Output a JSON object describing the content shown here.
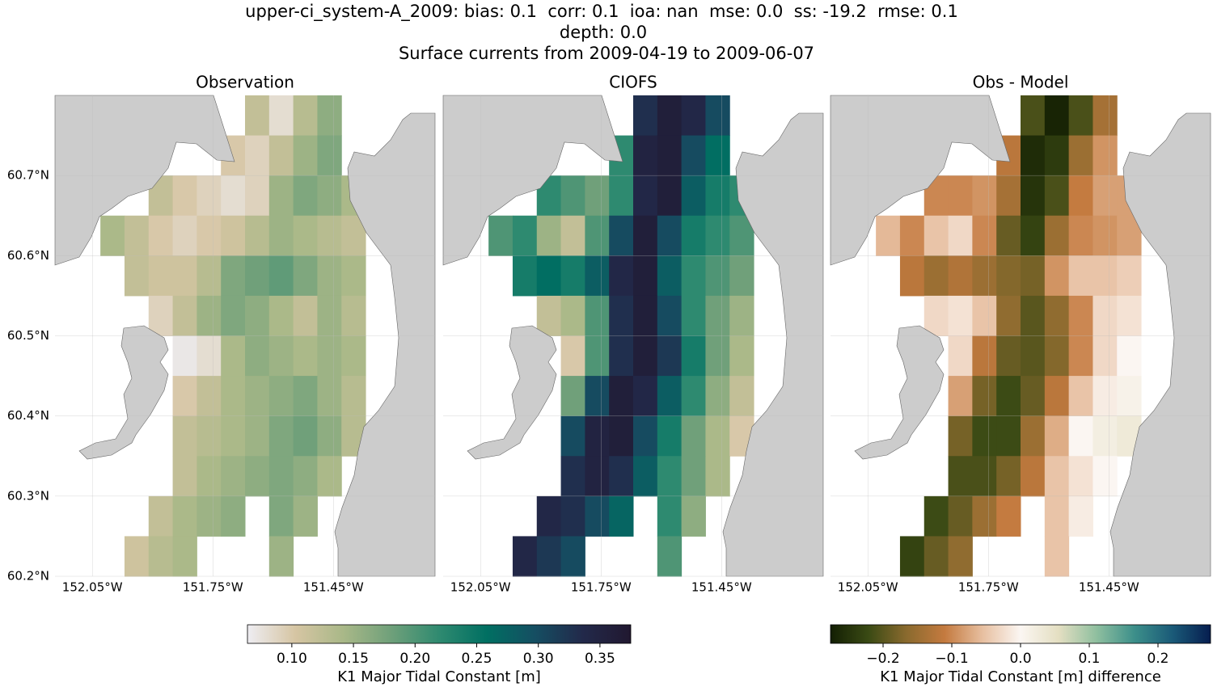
{
  "suptitle": [
    "upper-ci_system-A_2009: bias: 0.1  corr: 0.1  ioa: nan  mse: 0.0  ss: -19.2  rmse: 0.1",
    "depth: 0.0",
    "Surface currents from 2009-04-19 to 2009-06-07"
  ],
  "chart_data": [
    {
      "type": "heatmap",
      "title": "Observation",
      "x": [
        -152.0,
        -151.94,
        -151.88,
        -151.82,
        -151.76,
        -151.7,
        -151.64,
        -151.58,
        -151.52,
        -151.46,
        -151.4
      ],
      "y": [
        60.775,
        60.725,
        60.675,
        60.625,
        60.575,
        60.525,
        60.475,
        60.425,
        60.375,
        60.325,
        60.275,
        60.225
      ],
      "values": [
        [
          null,
          null,
          null,
          null,
          null,
          null,
          0.12,
          0.08,
          0.13,
          0.16,
          null
        ],
        [
          null,
          null,
          null,
          null,
          null,
          0.1,
          0.09,
          0.12,
          0.15,
          0.17,
          null
        ],
        [
          null,
          null,
          0.12,
          0.1,
          0.09,
          0.08,
          0.09,
          0.15,
          0.17,
          0.16,
          0.14
        ],
        [
          0.14,
          0.12,
          0.1,
          0.09,
          0.1,
          0.11,
          0.13,
          0.15,
          0.14,
          0.13,
          0.12
        ],
        [
          null,
          0.12,
          0.11,
          0.11,
          0.13,
          0.17,
          0.18,
          0.19,
          0.17,
          0.15,
          0.14
        ],
        [
          null,
          null,
          0.09,
          0.12,
          0.15,
          0.17,
          0.16,
          0.14,
          0.12,
          0.15,
          0.13
        ],
        [
          null,
          null,
          null,
          0.07,
          0.08,
          0.14,
          0.16,
          0.15,
          0.14,
          0.15,
          0.14
        ],
        [
          null,
          null,
          null,
          0.1,
          0.12,
          0.14,
          0.15,
          0.16,
          0.17,
          0.15,
          0.13
        ],
        [
          null,
          null,
          null,
          0.12,
          0.13,
          0.14,
          0.15,
          0.17,
          0.18,
          0.16,
          0.13
        ],
        [
          null,
          null,
          null,
          0.12,
          0.14,
          0.15,
          0.16,
          0.17,
          0.16,
          0.14,
          null
        ],
        [
          null,
          null,
          0.12,
          0.14,
          0.15,
          0.16,
          null,
          0.17,
          0.15,
          null,
          null
        ],
        [
          null,
          0.11,
          0.13,
          0.14,
          null,
          null,
          null,
          0.15,
          null,
          null,
          null
        ]
      ],
      "xlim": [
        -152.143,
        -151.197
      ],
      "ylim": [
        60.2,
        60.8
      ],
      "xticks": [
        {
          "value": -152.05,
          "label": "152.05°W"
        },
        {
          "value": -151.75,
          "label": "151.75°W"
        },
        {
          "value": -151.45,
          "label": "151.45°W"
        }
      ],
      "yticks": [
        {
          "value": 60.2,
          "label": "60.2°N"
        },
        {
          "value": 60.3,
          "label": "60.3°N"
        },
        {
          "value": 60.4,
          "label": "60.4°N"
        },
        {
          "value": 60.5,
          "label": "60.5°N"
        },
        {
          "value": 60.6,
          "label": "60.6°N"
        },
        {
          "value": 60.7,
          "label": "60.7°N"
        }
      ],
      "grid": true,
      "colorbar": {
        "label": "K1 Major Tidal Constant [m]",
        "lim": [
          0.064,
          0.375
        ],
        "ticks": [
          {
            "value": 0.1,
            "label": "0.10"
          },
          0.15,
          {
            "value": 0.2,
            "label": "0.20"
          },
          0.25,
          {
            "value": 0.3,
            "label": "0.30"
          },
          0.35
        ],
        "colors": [
          "#eeedf2",
          "#d6c5a3",
          "#a9b888",
          "#6fa07a",
          "#2f8a70",
          "#006f62",
          "#154e62",
          "#22294a",
          "#211830"
        ]
      }
    },
    {
      "type": "heatmap",
      "title": "CIOFS",
      "x": [
        -152.0,
        -151.94,
        -151.88,
        -151.82,
        -151.76,
        -151.7,
        -151.64,
        -151.58,
        -151.52,
        -151.46,
        -151.4
      ],
      "y": [
        60.775,
        60.725,
        60.675,
        60.625,
        60.575,
        60.525,
        60.475,
        60.425,
        60.375,
        60.325,
        60.275,
        60.225
      ],
      "values": [
        [
          null,
          null,
          null,
          null,
          null,
          null,
          0.33,
          0.36,
          0.34,
          0.3,
          null
        ],
        [
          null,
          null,
          null,
          null,
          null,
          0.22,
          0.35,
          0.36,
          0.3,
          0.26,
          null
        ],
        [
          null,
          null,
          0.22,
          0.2,
          0.18,
          0.22,
          0.34,
          0.36,
          0.28,
          0.24,
          0.22
        ],
        [
          0.2,
          0.22,
          0.15,
          0.12,
          0.2,
          0.3,
          0.36,
          0.3,
          0.24,
          0.22,
          0.2
        ],
        [
          null,
          0.24,
          0.26,
          0.24,
          0.28,
          0.34,
          0.36,
          0.28,
          0.22,
          0.2,
          0.18
        ],
        [
          null,
          null,
          0.12,
          0.14,
          0.2,
          0.33,
          0.36,
          0.3,
          0.22,
          0.18,
          0.15
        ],
        [
          null,
          null,
          null,
          0.1,
          0.2,
          0.33,
          0.36,
          0.32,
          0.24,
          0.18,
          0.14
        ],
        [
          null,
          null,
          null,
          0.18,
          0.3,
          0.36,
          0.34,
          0.28,
          0.22,
          0.16,
          0.12
        ],
        [
          null,
          null,
          null,
          0.3,
          0.35,
          0.36,
          0.3,
          0.24,
          0.18,
          0.14,
          0.1
        ],
        [
          null,
          null,
          null,
          0.33,
          0.35,
          0.33,
          0.28,
          0.22,
          0.18,
          0.14,
          null
        ],
        [
          null,
          null,
          0.34,
          0.33,
          0.3,
          0.27,
          null,
          0.22,
          0.16,
          null,
          null
        ],
        [
          null,
          0.34,
          0.32,
          0.3,
          null,
          null,
          null,
          0.2,
          null,
          null,
          null
        ]
      ],
      "xlim": [
        -152.143,
        -151.197
      ],
      "ylim": [
        60.2,
        60.8
      ],
      "xticks": [
        {
          "value": -152.05,
          "label": "152.05°W"
        },
        {
          "value": -151.75,
          "label": "151.75°W"
        },
        {
          "value": -151.45,
          "label": "151.45°W"
        }
      ],
      "grid": true
    },
    {
      "type": "heatmap",
      "title": "Obs - Model",
      "x": [
        -152.0,
        -151.94,
        -151.88,
        -151.82,
        -151.76,
        -151.7,
        -151.64,
        -151.58,
        -151.52,
        -151.46,
        -151.4
      ],
      "y": [
        60.775,
        60.725,
        60.675,
        60.625,
        60.575,
        60.525,
        60.475,
        60.425,
        60.375,
        60.325,
        60.275,
        60.225
      ],
      "values": [
        [
          null,
          null,
          null,
          null,
          null,
          null,
          -0.21,
          -0.27,
          -0.21,
          -0.14,
          null
        ],
        [
          null,
          null,
          null,
          null,
          null,
          -0.12,
          -0.26,
          -0.24,
          -0.15,
          -0.09,
          null
        ],
        [
          null,
          null,
          -0.1,
          -0.1,
          -0.09,
          -0.14,
          -0.25,
          -0.21,
          -0.11,
          -0.08,
          -0.08
        ],
        [
          -0.06,
          -0.1,
          -0.05,
          -0.03,
          -0.1,
          -0.19,
          -0.23,
          -0.15,
          -0.1,
          -0.09,
          -0.08
        ],
        [
          null,
          -0.12,
          -0.15,
          -0.13,
          -0.15,
          -0.17,
          -0.18,
          -0.09,
          -0.05,
          -0.05,
          -0.04
        ],
        [
          null,
          null,
          -0.03,
          -0.02,
          -0.05,
          -0.16,
          -0.2,
          -0.16,
          -0.1,
          -0.03,
          -0.02
        ],
        [
          null,
          null,
          null,
          -0.03,
          -0.12,
          -0.19,
          -0.2,
          -0.17,
          -0.1,
          -0.03,
          0.0
        ],
        [
          null,
          null,
          null,
          -0.08,
          -0.18,
          -0.22,
          -0.19,
          -0.12,
          -0.05,
          -0.01,
          0.01
        ],
        [
          null,
          null,
          null,
          -0.18,
          -0.22,
          -0.22,
          -0.15,
          -0.07,
          0.0,
          0.02,
          0.03
        ],
        [
          null,
          null,
          null,
          -0.21,
          -0.21,
          -0.18,
          -0.12,
          -0.05,
          -0.02,
          0.0,
          null
        ],
        [
          null,
          null,
          -0.22,
          -0.19,
          -0.15,
          -0.11,
          null,
          -0.05,
          -0.01,
          null,
          null
        ],
        [
          null,
          -0.23,
          -0.19,
          -0.16,
          null,
          null,
          null,
          -0.05,
          null,
          null,
          null
        ]
      ],
      "xlim": [
        -152.143,
        -151.197
      ],
      "ylim": [
        60.2,
        60.8
      ],
      "xticks": [
        {
          "value": -152.05,
          "label": "152.05°W"
        },
        {
          "value": -151.75,
          "label": "151.75°W"
        },
        {
          "value": -151.45,
          "label": "151.45°W"
        }
      ],
      "grid": true,
      "colorbar": {
        "label": "K1 Major Tidal Constant [m] difference",
        "lim": [
          -0.2765,
          0.2765
        ],
        "ticks": [
          {
            "value": -0.2,
            "label": "−0.2"
          },
          {
            "value": -0.1,
            "label": "−0.1"
          },
          {
            "value": 0.0,
            "label": "0.0"
          },
          0.1,
          0.2
        ],
        "colors": [
          "#131f03",
          "#3a4a14",
          "#8a6a2e",
          "#c47a3f",
          "#e7bfa0",
          "#fbf6f2",
          "#e4dfc2",
          "#8fbf9f",
          "#3c8f8a",
          "#1a5a78",
          "#061d4f"
        ]
      }
    }
  ]
}
